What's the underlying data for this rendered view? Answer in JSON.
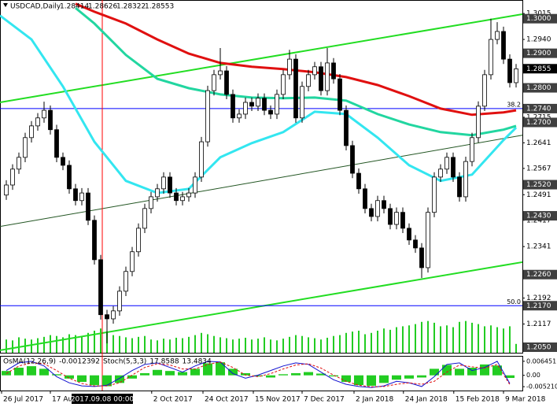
{
  "chart_data": {
    "type": "candlestick",
    "title": "USDCAD,Daily",
    "ohlc": [
      1.28414,
      1.28626,
      1.28322,
      1.28553
    ],
    "open": [
      1.249,
      1.2519,
      1.2565,
      1.2599,
      1.2656,
      1.269,
      1.2713,
      1.2735,
      1.2679,
      1.2599,
      1.2576,
      1.2508,
      1.2474,
      1.2496,
      1.2417,
      1.2303,
      1.2144,
      1.2132,
      1.2155,
      1.2212,
      1.2269,
      1.2326,
      1.2394,
      1.2451,
      1.2485,
      1.2508,
      1.2542,
      1.2496,
      1.2474,
      1.2485,
      1.2496,
      1.2542,
      1.2644,
      1.2792,
      1.2838,
      1.2849,
      1.2781,
      1.2713,
      1.2724,
      1.2758,
      1.2747,
      1.277,
      1.2735,
      1.2724,
      1.2781,
      1.2838,
      1.2883,
      1.2713,
      1.2804,
      1.2838,
      1.2861,
      1.2792,
      1.2872,
      1.2826,
      1.2735,
      1.2633,
      1.2553,
      1.2508,
      1.2451,
      1.2428,
      1.2474,
      1.2451,
      1.2405,
      1.244,
      1.2394,
      1.236,
      1.2337,
      1.228,
      1.244,
      1.2542,
      1.2565,
      1.2599,
      1.2542,
      1.2485,
      1.2587,
      1.2656,
      1.2747,
      1.2838,
      1.294,
      1.2963,
      1.2883,
      1.2815
    ],
    "high": [
      1.2533,
      1.2579,
      1.2613,
      1.267,
      1.2704,
      1.2727,
      1.276,
      1.2749,
      1.2693,
      1.2613,
      1.259,
      1.2522,
      1.251,
      1.251,
      1.2431,
      1.2317,
      1.2158,
      1.2169,
      1.2226,
      1.2283,
      1.234,
      1.2408,
      1.2465,
      1.2499,
      1.2522,
      1.2556,
      1.2556,
      1.251,
      1.2499,
      1.251,
      1.2556,
      1.2658,
      1.2806,
      1.2852,
      1.2915,
      1.2863,
      1.2795,
      1.2738,
      1.2772,
      1.2772,
      1.2784,
      1.2784,
      1.2749,
      1.2795,
      1.2852,
      1.291,
      1.2897,
      1.2818,
      1.2852,
      1.2875,
      1.2875,
      1.2915,
      1.2886,
      1.284,
      1.2749,
      1.2647,
      1.2567,
      1.2522,
      1.2465,
      1.2488,
      1.2488,
      1.2465,
      1.2454,
      1.2454,
      1.2408,
      1.2374,
      1.2351,
      1.2454,
      1.2556,
      1.2579,
      1.2613,
      1.2613,
      1.2556,
      1.2601,
      1.267,
      1.2761,
      1.2852,
      1.3,
      1.299,
      1.2977,
      1.2897,
      1.2869
    ],
    "low": [
      1.2476,
      1.2505,
      1.2551,
      1.2585,
      1.2642,
      1.2676,
      1.2699,
      1.2665,
      1.2585,
      1.2562,
      1.2494,
      1.246,
      1.246,
      1.2403,
      1.2289,
      1.213,
      1.2061,
      1.2118,
      1.2141,
      1.2198,
      1.2255,
      1.2312,
      1.238,
      1.2437,
      1.2471,
      1.2494,
      1.2482,
      1.246,
      1.246,
      1.2471,
      1.2482,
      1.2528,
      1.263,
      1.2778,
      1.2824,
      1.2767,
      1.2699,
      1.2699,
      1.271,
      1.2733,
      1.2733,
      1.2721,
      1.271,
      1.271,
      1.2767,
      1.2824,
      1.2699,
      1.2699,
      1.279,
      1.2824,
      1.2778,
      1.2778,
      1.2812,
      1.2721,
      1.2619,
      1.2539,
      1.2494,
      1.2437,
      1.2414,
      1.2414,
      1.2437,
      1.2391,
      1.2391,
      1.238,
      1.2346,
      1.2323,
      1.225,
      1.2266,
      1.2426,
      1.2528,
      1.2551,
      1.2528,
      1.2471,
      1.2471,
      1.2573,
      1.2642,
      1.2733,
      1.2824,
      1.2926,
      1.2869,
      1.2801,
      1.2801
    ],
    "close": [
      1.2519,
      1.2565,
      1.2599,
      1.2656,
      1.269,
      1.2713,
      1.2735,
      1.2679,
      1.2599,
      1.2576,
      1.2508,
      1.2474,
      1.2496,
      1.2417,
      1.2303,
      1.2144,
      1.2132,
      1.2155,
      1.2212,
      1.2269,
      1.2326,
      1.2394,
      1.2451,
      1.2485,
      1.2508,
      1.2542,
      1.2496,
      1.2474,
      1.2485,
      1.2496,
      1.2542,
      1.2644,
      1.2792,
      1.2838,
      1.2849,
      1.2781,
      1.2713,
      1.2724,
      1.2758,
      1.2747,
      1.277,
      1.2735,
      1.2724,
      1.2781,
      1.2838,
      1.2883,
      1.2713,
      1.2804,
      1.2838,
      1.2861,
      1.2792,
      1.2872,
      1.2826,
      1.2735,
      1.2633,
      1.2553,
      1.2508,
      1.2451,
      1.2428,
      1.2474,
      1.2451,
      1.2405,
      1.244,
      1.2394,
      1.236,
      1.2337,
      1.228,
      1.244,
      1.2542,
      1.2565,
      1.2599,
      1.2542,
      1.2485,
      1.2587,
      1.2656,
      1.2747,
      1.2838,
      1.294,
      1.2963,
      1.2883,
      1.2815,
      1.2855
    ],
    "up_color": "#ffffff",
    "down_color": "#000000",
    "xlim": [
      -1,
      82
    ],
    "ylim": [
      1.2034,
      1.3054
    ],
    "xticks": [
      {
        "value": -0.75,
        "label": "26 Jul 2017"
      },
      {
        "value": 7,
        "label": "17 Aug 2017"
      },
      {
        "value": 23.1,
        "label": "2 Oct 2017"
      },
      {
        "value": 31.25,
        "label": "24 Oct 2017"
      },
      {
        "value": 39.25,
        "label": "15 Nov 2017"
      },
      {
        "value": 47,
        "label": "7 Dec 2017"
      },
      {
        "value": 55.25,
        "label": "2 Jan 2018"
      },
      {
        "value": 63.1,
        "label": "24 Jan 2018"
      },
      {
        "value": 71.1,
        "label": "15 Feb 2018"
      },
      {
        "value": 79,
        "label": "9 Mar 2018"
      }
    ],
    "yticks": [
      1.3015,
      {
        "value": 1.294,
        "label": "1.2940"
      },
      1.2715,
      1.2641,
      1.2567,
      1.2491,
      1.2417,
      1.2341,
      1.2192,
      1.2117
    ],
    "levels": [
      {
        "value": 1.3,
        "label": "1.3000"
      },
      {
        "value": 1.29,
        "label": "1.2900"
      },
      {
        "value": 1.28,
        "label": "1.2800"
      },
      {
        "value": 1.274,
        "label": "1.2740"
      },
      {
        "value": 1.27,
        "label": "1.2700"
      },
      {
        "value": 1.252,
        "label": "1.2520"
      },
      {
        "value": 1.243,
        "label": "1.2430"
      },
      {
        "value": 1.226,
        "label": "1.2260"
      },
      {
        "value": 1.217,
        "label": "1.2170"
      },
      {
        "value": 1.205,
        "label": "1.2050"
      }
    ],
    "last": {
      "value": 1.28553,
      "label": "1.2855"
    },
    "hlines": [
      {
        "value": 1.274,
        "label": "38.2",
        "color": "#0000ff"
      },
      {
        "value": 1.217,
        "label": "50.0",
        "color": "#0000ff"
      }
    ],
    "crosshair": {
      "x": 15.25,
      "label": "2017.09.08 00:00",
      "color": "#ff0000"
    },
    "ma": [
      {
        "color": "#33e6f0",
        "x": [
          -1,
          4,
          9,
          14,
          19,
          24,
          29,
          34,
          39,
          44,
          49,
          54,
          59,
          64,
          69,
          74,
          79,
          81
        ],
        "values": [
          1.3009,
          1.294,
          1.2804,
          1.2644,
          1.2531,
          1.2496,
          1.2508,
          1.2599,
          1.264,
          1.2672,
          1.2731,
          1.2724,
          1.2656,
          1.2576,
          1.2531,
          1.2549,
          1.2649,
          1.2685
        ]
      },
      {
        "color": "#22d6a0",
        "x": [
          11,
          14,
          19,
          24,
          29,
          34,
          39,
          44,
          49,
          54,
          59,
          64,
          69,
          74,
          79,
          81
        ],
        "values": [
          1.3031,
          1.2986,
          1.2895,
          1.2826,
          1.2799,
          1.2781,
          1.2772,
          1.277,
          1.2772,
          1.2763,
          1.2724,
          1.2694,
          1.2672,
          1.2663,
          1.2679,
          1.269
        ]
      },
      {
        "color": "#e01010",
        "x": [
          11,
          14,
          19,
          24,
          29,
          34,
          39,
          44,
          49,
          54,
          59,
          64,
          69,
          74,
          79,
          81
        ],
        "values": [
          1.3043,
          1.302,
          1.2986,
          1.294,
          1.2899,
          1.2872,
          1.2861,
          1.2854,
          1.2845,
          1.2831,
          1.2808,
          1.2776,
          1.274,
          1.2722,
          1.2729,
          1.2735
        ]
      }
    ],
    "trendlines": [
      {
        "color": "#22dd22",
        "width": 2,
        "x": [
          -1,
          82
        ],
        "values": [
          1.2758,
          1.3013
        ]
      },
      {
        "color": "#225522",
        "width": 1,
        "x": [
          -1,
          82
        ],
        "values": [
          1.2399,
          1.2663
        ]
      },
      {
        "color": "#22dd22",
        "width": 2,
        "x": [
          -1,
          82
        ],
        "values": [
          1.2041,
          1.2296
        ]
      }
    ],
    "volume": {
      "color": "#22cc22",
      "ylim": [
        0,
        100
      ],
      "values": [
        30,
        28,
        35,
        32,
        30,
        33,
        36,
        40,
        38,
        35,
        42,
        40,
        38,
        45,
        50,
        55,
        48,
        40,
        38,
        35,
        33,
        36,
        38,
        30,
        28,
        32,
        30,
        34,
        33,
        36,
        40,
        45,
        42,
        38,
        35,
        33,
        30,
        32,
        34,
        30,
        32,
        35,
        30,
        28,
        32,
        36,
        40,
        38,
        35,
        33,
        30,
        34,
        38,
        40,
        45,
        48,
        50,
        42,
        45,
        50,
        55,
        52,
        58,
        60,
        62,
        65,
        70,
        72,
        68,
        60,
        62,
        58,
        70,
        72,
        68,
        65,
        60,
        62,
        58,
        55,
        60,
        20
      ]
    },
    "oscillator": {
      "osma_name": "OsMA(12,26,9)",
      "osma_last": -0.0012392,
      "stoch_name": "Stoch(5,3,3)",
      "stoch_last": [
        17.8588,
        13.4834
      ],
      "ylim": [
        -0.00698,
        0.00857
      ],
      "yticks": [
        0.006451,
        {
          "value": 0,
          "label": "0.00"
        },
        {
          "value": -0.00521,
          "label": "-0.005210"
        }
      ],
      "stoch_ylim": [
        0,
        100
      ],
      "osma_color": "#22cc22",
      "main_color": "#1010d0",
      "signal_color": "#e01010",
      "x": [
        0,
        2,
        4,
        6,
        8,
        10,
        12,
        14,
        16,
        18,
        20,
        22,
        24,
        26,
        28,
        30,
        32,
        34,
        36,
        38,
        40,
        42,
        44,
        46,
        48,
        50,
        52,
        54,
        56,
        58,
        60,
        62,
        64,
        66,
        68,
        70,
        72,
        74,
        76,
        78,
        80
      ],
      "osma": [
        0.002,
        0.0035,
        0.0042,
        0.003,
        0.0005,
        -0.0015,
        -0.003,
        -0.0045,
        -0.005,
        -0.0035,
        -0.0015,
        0.001,
        0.0025,
        0.002,
        0.0015,
        0.003,
        0.0055,
        0.006,
        0.003,
        0.001,
        -0.0005,
        -0.001,
        0.0005,
        0.001,
        0.0015,
        0.0008,
        -0.0005,
        -0.003,
        -0.0045,
        -0.0048,
        -0.0035,
        -0.002,
        -0.0015,
        -0.001,
        0.003,
        0.0048,
        0.003,
        0.0035,
        0.005,
        0.0045,
        -0.0012
      ],
      "main": [
        60,
        85,
        90,
        75,
        40,
        20,
        10,
        8,
        12,
        35,
        60,
        80,
        85,
        70,
        55,
        75,
        90,
        88,
        50,
        35,
        45,
        60,
        75,
        85,
        80,
        55,
        30,
        15,
        8,
        5,
        10,
        25,
        20,
        8,
        40,
        80,
        85,
        60,
        70,
        90,
        18
      ],
      "signal": [
        50,
        75,
        85,
        82,
        60,
        35,
        18,
        10,
        10,
        20,
        45,
        70,
        82,
        78,
        65,
        65,
        80,
        88,
        70,
        45,
        40,
        50,
        65,
        78,
        82,
        68,
        45,
        25,
        12,
        7,
        8,
        15,
        20,
        15,
        25,
        55,
        78,
        72,
        68,
        80,
        14
      ]
    }
  }
}
